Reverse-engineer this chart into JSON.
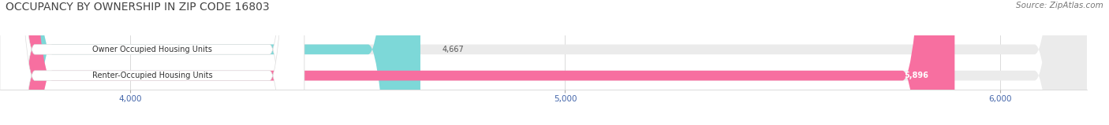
{
  "title": "OCCUPANCY BY OWNERSHIP IN ZIP CODE 16803",
  "source_text": "Source: ZipAtlas.com",
  "categories": [
    "Owner Occupied Housing Units",
    "Renter-Occupied Housing Units"
  ],
  "values": [
    4667,
    5896
  ],
  "bar_colors": [
    "#7dd8d8",
    "#f76fa0"
  ],
  "bar_bg_color": "#ebebeb",
  "xlim_min": 3700,
  "xlim_max": 6200,
  "xticks": [
    4000,
    5000,
    6000
  ],
  "xtick_labels": [
    "4,000",
    "5,000",
    "6,000"
  ],
  "title_fontsize": 10,
  "source_fontsize": 7.5,
  "label_fontsize": 7,
  "value_fontsize": 7,
  "tick_fontsize": 7.5,
  "bar_height": 0.38,
  "title_color": "#444444",
  "source_color": "#777777",
  "tick_color": "#4466aa",
  "value_color_inside": "#ffffff",
  "value_color_outside": "#555555",
  "label_text_color": "#333333",
  "label_bg_color": "#ffffff",
  "background_color": "#ffffff",
  "grid_color": "#cccccc"
}
